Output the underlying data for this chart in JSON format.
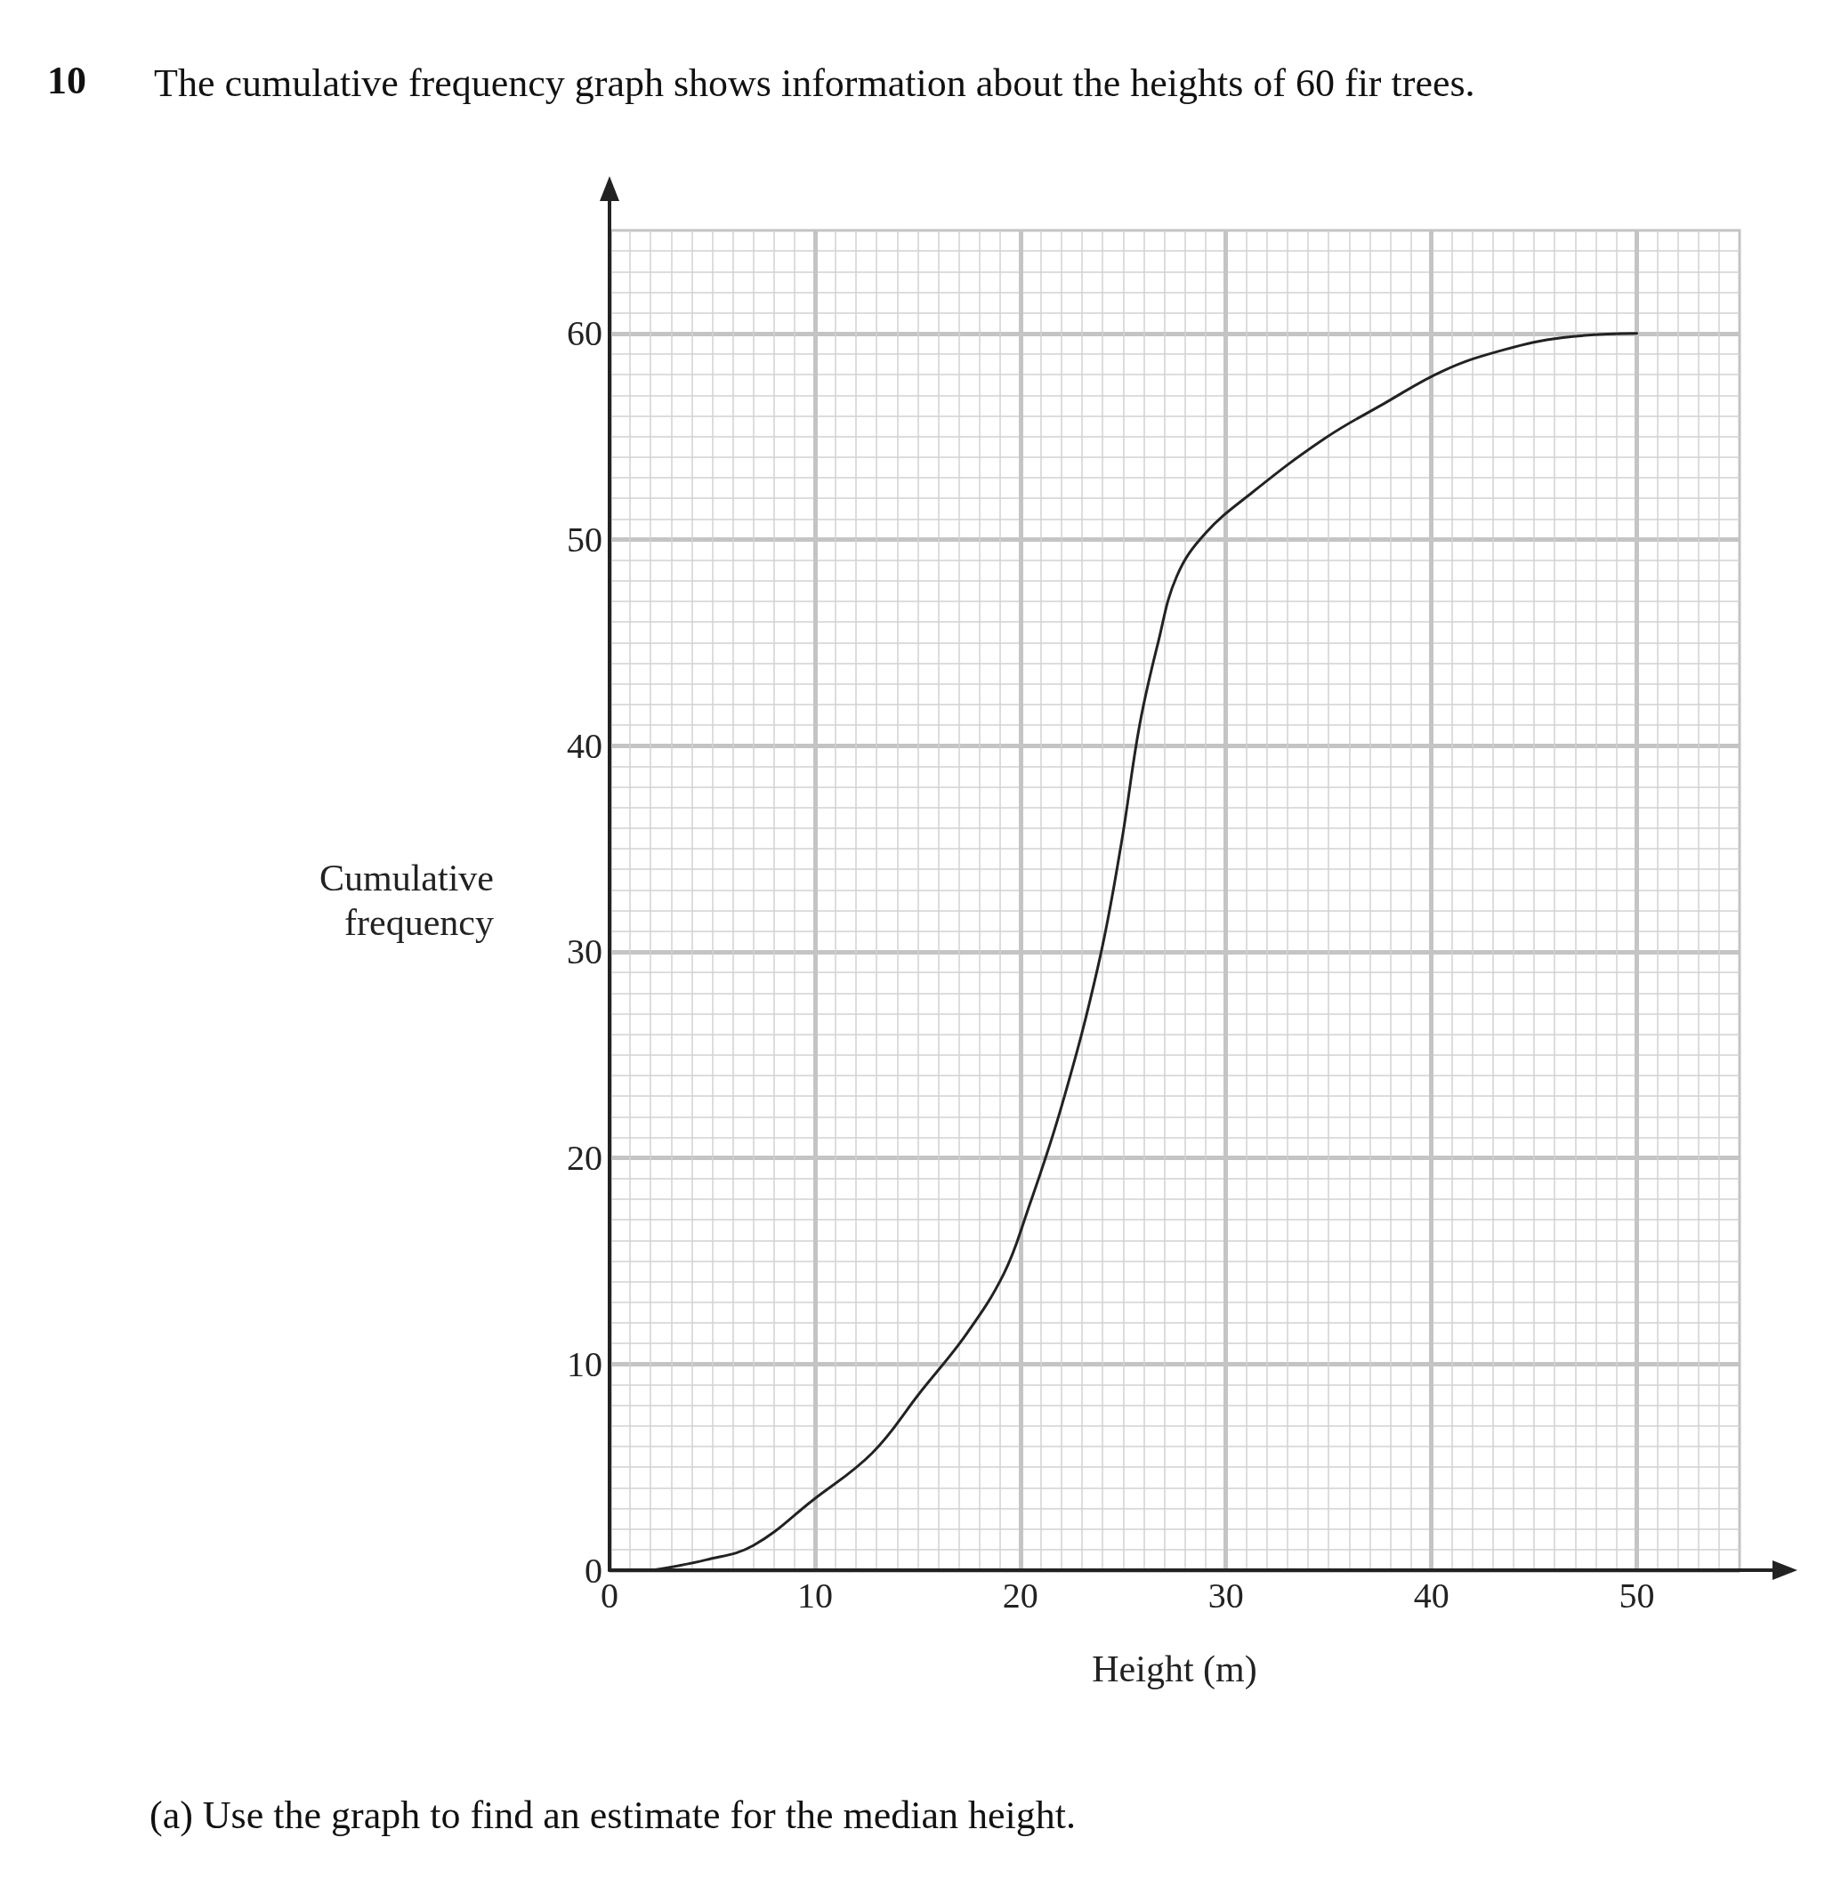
{
  "chart_data": {
    "type": "line",
    "title": "The cumulative frequency graph shows information about the heights of 60 fir trees.",
    "xlabel": "Height (m)",
    "ylabel": "Cumulative\nfrequency",
    "annotations": [
      "10",
      "(a) Use the graph to find an estimate for the median height."
    ],
    "x": [
      2.1,
      4.7,
      7,
      9.9,
      12.8,
      15.1,
      17.4,
      19.2,
      20.3,
      22,
      23.8,
      24.9,
      25.8,
      26.7,
      27.6,
      29,
      31.3,
      34.8,
      37.7,
      40.6,
      43.5,
      46.4,
      50
    ],
    "series": [
      {
        "color": "#222222",
        "values": [
          0,
          0.5,
          1.2,
          3.4,
          5.7,
          8.6,
          11.5,
          14.4,
          17.3,
          22.5,
          29.4,
          35.2,
          41,
          45,
          48.2,
          50.3,
          52.3,
          54.9,
          56.6,
          58.2,
          59.2,
          59.8,
          60
        ]
      }
    ],
    "xlim": [
      0,
      55
    ],
    "ylim": [
      0,
      65
    ],
    "xticks": [
      0,
      10,
      20,
      30,
      40,
      50
    ],
    "yticks": [
      0,
      10,
      20,
      30,
      40,
      50,
      60
    ],
    "grid": true,
    "marker": "none",
    "line_style": "solid"
  }
}
